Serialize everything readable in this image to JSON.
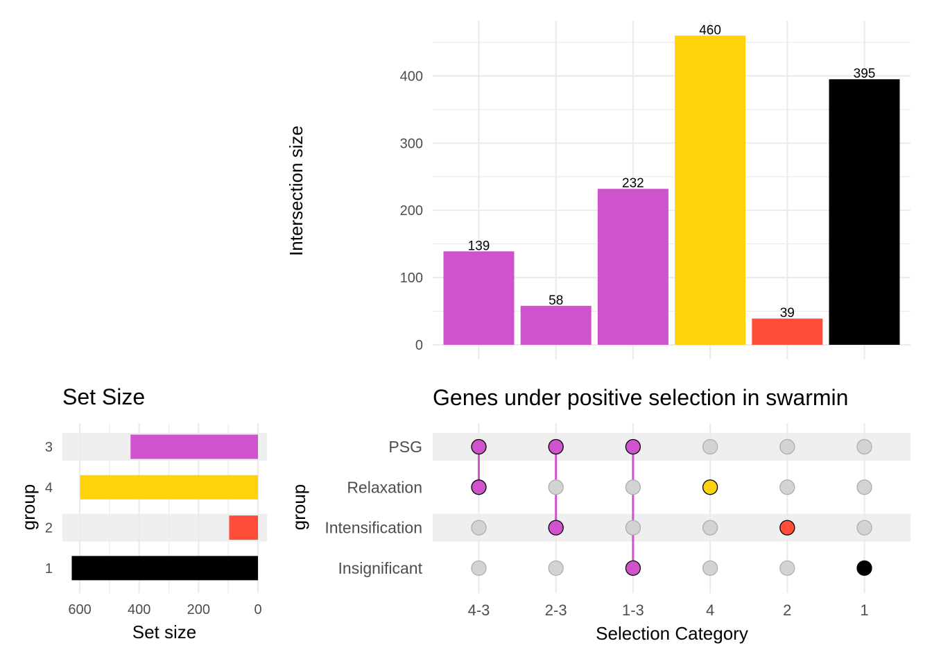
{
  "chart_data": [
    {
      "name": "intersection-size",
      "type": "bar",
      "title": "",
      "xlabel": "",
      "ylabel": "Intersection size",
      "ylim": [
        0,
        470
      ],
      "yticks": [
        0,
        100,
        200,
        300,
        400
      ],
      "grid": true,
      "categories": [
        "4-3",
        "2-3",
        "1-3",
        "4",
        "2",
        "1"
      ],
      "values": [
        139,
        58,
        232,
        460,
        39,
        395
      ],
      "colors": [
        "#CE53CC",
        "#CE53CC",
        "#CE53CC",
        "#FED20D",
        "#FF4D3A",
        "#000000"
      ],
      "data_labels": [
        "139",
        "58",
        "232",
        "460",
        "39",
        "395"
      ]
    },
    {
      "name": "set-size",
      "type": "bar",
      "orientation": "horizontal",
      "title": "Set Size",
      "xlabel": "Set size",
      "ylabel": "group",
      "xlim": [
        645,
        0
      ],
      "xticks": [
        600,
        400,
        200,
        0
      ],
      "x_tick_labels": [
        "600",
        "400",
        "200",
        "0"
      ],
      "grid": true,
      "categories": [
        "3",
        "4",
        "2",
        "1"
      ],
      "values": [
        429,
        599,
        97,
        627
      ],
      "colors": [
        "#CE53CC",
        "#FED20D",
        "#FF4D3A",
        "#000000"
      ]
    },
    {
      "name": "intersection-matrix",
      "type": "scatter",
      "title": "Genes under positive selection in swarmin",
      "xlabel": "Selection Category",
      "ylabel": "group",
      "x_categories": [
        "4-3",
        "2-3",
        "1-3",
        "4",
        "2",
        "1"
      ],
      "y_categories": [
        "PSG",
        "Relaxation",
        "Intensification",
        "Insignificant"
      ],
      "membership": [
        {
          "category": "4-3",
          "sets": [
            "PSG",
            "Relaxation"
          ],
          "color": "#CE53CC"
        },
        {
          "category": "2-3",
          "sets": [
            "PSG",
            "Intensification"
          ],
          "color": "#CE53CC"
        },
        {
          "category": "1-3",
          "sets": [
            "PSG",
            "Insignificant"
          ],
          "color": "#CE53CC"
        },
        {
          "category": "4",
          "sets": [
            "Relaxation"
          ],
          "color": "#FED20D"
        },
        {
          "category": "2",
          "sets": [
            "Intensification"
          ],
          "color": "#FF4D3A"
        },
        {
          "category": "1",
          "sets": [
            "Insignificant"
          ],
          "color": "#000000"
        }
      ],
      "inactive_color": "#D3D3D3",
      "band_color": "#EFEFEF"
    }
  ]
}
